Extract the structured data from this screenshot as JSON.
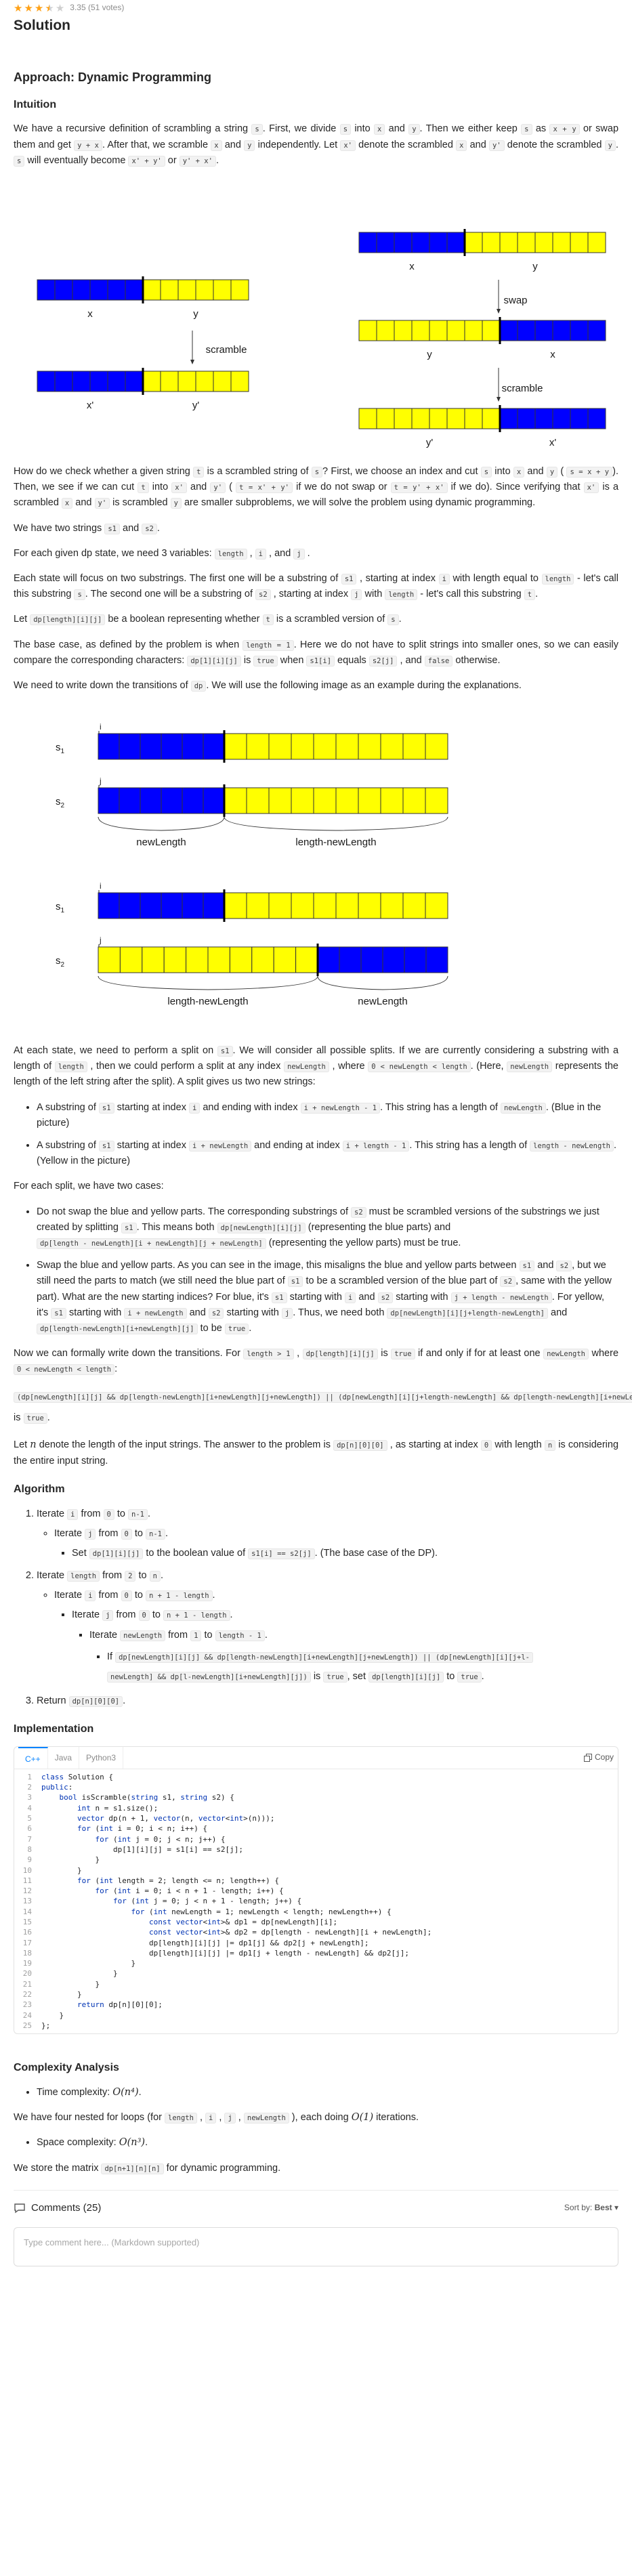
{
  "rating": {
    "stars": 3.5,
    "text": "3.35 (51 votes)"
  },
  "page_title": "Solution",
  "approach_title": "Approach: Dynamic Programming",
  "intuition_title": "Intuition",
  "intuition_paragraph": [
    {
      "t": "We have a recursive definition of scrambling a string "
    },
    {
      "c": "s"
    },
    {
      "t": ". First, we divide "
    },
    {
      "c": "s"
    },
    {
      "t": " into "
    },
    {
      "c": "x"
    },
    {
      "t": " and "
    },
    {
      "c": "y"
    },
    {
      "t": ". Then we either keep "
    },
    {
      "c": "s"
    },
    {
      "t": " as "
    },
    {
      "c": "x + y"
    },
    {
      "t": " or swap them and get "
    },
    {
      "c": "y + x"
    },
    {
      "t": ". After that, we scramble "
    },
    {
      "c": "x"
    },
    {
      "t": " and "
    },
    {
      "c": "y"
    },
    {
      "t": " independently. Let "
    },
    {
      "c": "x'"
    },
    {
      "t": " denote the scrambled "
    },
    {
      "c": "x"
    },
    {
      "t": " and "
    },
    {
      "c": "y'"
    },
    {
      "t": " denote the scrambled "
    },
    {
      "c": "y"
    },
    {
      "t": ". "
    },
    {
      "c": "s"
    },
    {
      "t": " will eventually become "
    },
    {
      "c": "x' + y'"
    },
    {
      "t": " or "
    },
    {
      "c": "y' + x'"
    },
    {
      "t": "."
    }
  ],
  "figure1": {
    "label_x": "x",
    "label_y": "y",
    "label_x_prime": "x'",
    "label_y_prime": "y'",
    "label_scramble": "scramble",
    "label_swap": "swap"
  },
  "check_paragraph": [
    {
      "t": "How do we check whether a given string "
    },
    {
      "c": "t"
    },
    {
      "t": " is a scrambled string of "
    },
    {
      "c": "s"
    },
    {
      "t": "? First, we choose an index and cut "
    },
    {
      "c": "s"
    },
    {
      "t": " into "
    },
    {
      "c": "x"
    },
    {
      "t": " and "
    },
    {
      "c": "y"
    },
    {
      "t": " ( "
    },
    {
      "c": "s = x + y"
    },
    {
      "t": "). Then, we see if we can cut "
    },
    {
      "c": "t"
    },
    {
      "t": " into "
    },
    {
      "c": "x'"
    },
    {
      "t": " and "
    },
    {
      "c": "y'"
    },
    {
      "t": " ( "
    },
    {
      "c": "t = x' + y'"
    },
    {
      "t": " if we do not swap or "
    },
    {
      "c": "t = y' + x'"
    },
    {
      "t": " if we do). Since verifying that "
    },
    {
      "c": "x'"
    },
    {
      "t": " is a scrambled "
    },
    {
      "c": "x"
    },
    {
      "t": " and "
    },
    {
      "c": "y'"
    },
    {
      "t": " is scrambled "
    },
    {
      "c": "y"
    },
    {
      "t": " are smaller subproblems, we will solve the problem using dynamic programming."
    }
  ],
  "two_strings": [
    {
      "t": "We have two strings "
    },
    {
      "c": "s1"
    },
    {
      "t": " and "
    },
    {
      "c": "s2"
    },
    {
      "t": "."
    }
  ],
  "three_vars": [
    {
      "t": "For each given dp state, we need 3 variables: "
    },
    {
      "c": "length"
    },
    {
      "t": " , "
    },
    {
      "c": "i"
    },
    {
      "t": " , and "
    },
    {
      "c": "j"
    },
    {
      "t": " ."
    }
  ],
  "substrings_paragraph": [
    {
      "t": "Each state will focus on two substrings. The first one will be a substring of "
    },
    {
      "c": "s1"
    },
    {
      "t": " , starting at index "
    },
    {
      "c": "i"
    },
    {
      "t": " with length equal to "
    },
    {
      "c": "length"
    },
    {
      "t": " - let's call this substring "
    },
    {
      "c": "s"
    },
    {
      "t": ". The second one will be a substring of "
    },
    {
      "c": "s2"
    },
    {
      "t": " , starting at index "
    },
    {
      "c": "j"
    },
    {
      "t": " with "
    },
    {
      "c": "length"
    },
    {
      "t": " - let's call this substring "
    },
    {
      "c": "t"
    },
    {
      "t": "."
    }
  ],
  "let_dp": [
    {
      "t": "Let "
    },
    {
      "c": "dp[length][i][j]"
    },
    {
      "t": " be a boolean representing whether "
    },
    {
      "c": "t"
    },
    {
      "t": " is a scrambled version of "
    },
    {
      "c": "s"
    },
    {
      "t": "."
    }
  ],
  "base_case": [
    {
      "t": "The base case, as defined by the problem is when "
    },
    {
      "c": "length = 1"
    },
    {
      "t": ". Here we do not have to split strings into smaller ones, so we can easily compare the corresponding characters: "
    },
    {
      "c": "dp[1][i][j]"
    },
    {
      "t": " is "
    },
    {
      "c": "true"
    },
    {
      "t": " when "
    },
    {
      "c": "s1[i]"
    },
    {
      "t": " equals "
    },
    {
      "c": "s2[j]"
    },
    {
      "t": " , and "
    },
    {
      "c": "false"
    },
    {
      "t": " otherwise."
    }
  ],
  "transitions_intro": [
    {
      "t": "We need to write down the transitions of "
    },
    {
      "c": "dp"
    },
    {
      "t": ". We will use the following image as an example during the explanations."
    }
  ],
  "figure2": {
    "s1": "s",
    "s1_sub": "1",
    "s2": "s",
    "s2_sub": "2",
    "i": "i",
    "j": "j",
    "newLength": "newLength",
    "length_minus_newLength": "length-newLength"
  },
  "split_paragraph": [
    {
      "t": "At each state, we need to perform a split on "
    },
    {
      "c": "s1"
    },
    {
      "t": ". We will consider all possible splits. If we are currently considering a substring with a length of "
    },
    {
      "c": "length"
    },
    {
      "t": " , then we could perform a split at any index "
    },
    {
      "c": "newLength"
    },
    {
      "t": " , where "
    },
    {
      "c": "0 < newLength < length"
    },
    {
      "t": ". (Here, "
    },
    {
      "c": "newLength"
    },
    {
      "t": " represents the length of the left string after the split). A split gives us two new strings:"
    }
  ],
  "split_items": [
    [
      {
        "t": "A substring of "
      },
      {
        "c": "s1"
      },
      {
        "t": " starting at index "
      },
      {
        "c": "i"
      },
      {
        "t": " and ending with index "
      },
      {
        "c": "i + newLength - 1"
      },
      {
        "t": ". This string has a length of "
      },
      {
        "c": "newLength"
      },
      {
        "t": ". (Blue in the picture)"
      }
    ],
    [
      {
        "t": "A substring of "
      },
      {
        "c": "s1"
      },
      {
        "t": " starting at index "
      },
      {
        "c": "i + newLength"
      },
      {
        "t": " and ending at index "
      },
      {
        "c": "i + length - 1"
      },
      {
        "t": ". This string has a length of "
      },
      {
        "c": "length - newLength"
      },
      {
        "t": ". (Yellow in the picture)"
      }
    ]
  ],
  "two_cases": [
    {
      "t": "For each split, we have two cases:"
    }
  ],
  "case_items": [
    [
      {
        "t": "Do not swap the blue and yellow parts. The corresponding substrings of "
      },
      {
        "c": "s2"
      },
      {
        "t": " must be scrambled versions of the substrings we just created by splitting "
      },
      {
        "c": "s1"
      },
      {
        "t": ". This means both "
      },
      {
        "c": "dp[newLength][i][j]"
      },
      {
        "t": " (representing the blue parts) and "
      },
      {
        "c": "dp[length - newLength][i + newLength][j + newLength]"
      },
      {
        "t": " (representing the yellow parts) must be true."
      }
    ],
    [
      {
        "t": "Swap the blue and yellow parts. As you can see in the image, this misaligns the blue and yellow parts between "
      },
      {
        "c": "s1"
      },
      {
        "t": " and "
      },
      {
        "c": "s2"
      },
      {
        "t": ", but we still need the parts to match (we still need the blue part of "
      },
      {
        "c": "s1"
      },
      {
        "t": " to be a scrambled version of the blue part of "
      },
      {
        "c": "s2"
      },
      {
        "t": ", same with the yellow part). What are the new starting indices? For blue, it's "
      },
      {
        "c": "s1"
      },
      {
        "t": " starting with "
      },
      {
        "c": "i"
      },
      {
        "t": " and "
      },
      {
        "c": "s2"
      },
      {
        "t": " starting with "
      },
      {
        "c": "j + length - newLength"
      },
      {
        "t": ". For yellow, it's "
      },
      {
        "c": "s1"
      },
      {
        "t": " starting with "
      },
      {
        "c": "i + newLength"
      },
      {
        "t": " and "
      },
      {
        "c": "s2"
      },
      {
        "t": " starting with "
      },
      {
        "c": "j"
      },
      {
        "t": ". Thus, we need both "
      },
      {
        "c": "dp[newLength][i][j+length-newLength]"
      },
      {
        "t": " and "
      },
      {
        "c": "dp[length-newLength][i+newLength][j]"
      },
      {
        "t": " to be "
      },
      {
        "c": "true"
      },
      {
        "t": "."
      }
    ]
  ],
  "formal_paragraph": [
    {
      "t": "Now we can formally write down the transitions. For "
    },
    {
      "c": "length > 1"
    },
    {
      "t": " , "
    },
    {
      "c": "dp[length][i][j]"
    },
    {
      "t": " is "
    },
    {
      "c": "true"
    },
    {
      "t": " if and only if for at least one "
    },
    {
      "c": "newLength"
    },
    {
      "t": " where "
    },
    {
      "c": "0 < newLength < length"
    },
    {
      "t": ":"
    }
  ],
  "formal_condition": [
    {
      "c": "(dp[newLength][i][j] && dp[length-newLength][i+newLength][j+newLength]) || (dp[newLength][i][j+length-newLength] && dp[length-newLength][i+newLength][j])"
    },
    {
      "t": " is "
    },
    {
      "c": "true"
    },
    {
      "t": "."
    }
  ],
  "let_n": [
    {
      "t": "Let "
    },
    {
      "m": "n"
    },
    {
      "t": " denote the length of the input strings. The answer to the problem is "
    },
    {
      "c": "dp[n][0][0]"
    },
    {
      "t": " , as starting at index "
    },
    {
      "c": "0"
    },
    {
      "t": " with length "
    },
    {
      "c": "n"
    },
    {
      "t": " is considering the entire input string."
    }
  ],
  "algorithm_title": "Algorithm",
  "algorithm": {
    "step1": [
      {
        "t": "Iterate "
      },
      {
        "c": "i"
      },
      {
        "t": " from "
      },
      {
        "c": "0"
      },
      {
        "t": " to "
      },
      {
        "c": "n-1"
      },
      {
        "t": "."
      }
    ],
    "step1a": [
      {
        "t": "Iterate "
      },
      {
        "c": "j"
      },
      {
        "t": " from "
      },
      {
        "c": "0"
      },
      {
        "t": " to "
      },
      {
        "c": "n-1"
      },
      {
        "t": "."
      }
    ],
    "step1b": [
      {
        "t": "Set "
      },
      {
        "c": "dp[1][i][j]"
      },
      {
        "t": " to the boolean value of "
      },
      {
        "c": "s1[i] == s2[j]"
      },
      {
        "t": ". (The base case of the DP)."
      }
    ],
    "step2": [
      {
        "t": "Iterate "
      },
      {
        "c": "length"
      },
      {
        "t": " from "
      },
      {
        "c": "2"
      },
      {
        "t": " to "
      },
      {
        "c": "n"
      },
      {
        "t": "."
      }
    ],
    "step2a": [
      {
        "t": "Iterate "
      },
      {
        "c": "i"
      },
      {
        "t": " from "
      },
      {
        "c": "0"
      },
      {
        "t": " to "
      },
      {
        "c": "n + 1 - length"
      },
      {
        "t": "."
      }
    ],
    "step2b": [
      {
        "t": "Iterate "
      },
      {
        "c": "j"
      },
      {
        "t": " from "
      },
      {
        "c": "0"
      },
      {
        "t": " to "
      },
      {
        "c": "n + 1 - length"
      },
      {
        "t": "."
      }
    ],
    "step2c": [
      {
        "t": "Iterate "
      },
      {
        "c": "newLength"
      },
      {
        "t": " from "
      },
      {
        "c": "1"
      },
      {
        "t": " to "
      },
      {
        "c": "length - 1"
      },
      {
        "t": "."
      }
    ],
    "step2d": [
      {
        "t": "If "
      },
      {
        "c": "dp[newLength][i][j] && dp[length-newLength][i+newLength][j+newLength]) || (dp[newLength][i][j+l-"
      },
      {
        "c": "newLength] && dp[l-newLength][i+newLength][j])"
      },
      {
        "t": " is "
      },
      {
        "c": "true"
      },
      {
        "t": ", set "
      },
      {
        "c": "dp[length][i][j]"
      },
      {
        "t": " to "
      },
      {
        "c": "true"
      },
      {
        "t": "."
      }
    ],
    "step3": [
      {
        "t": "Return "
      },
      {
        "c": "dp[n][0][0]"
      },
      {
        "t": "."
      }
    ]
  },
  "implementation_title": "Implementation",
  "code_tabs": [
    "C++",
    "Java",
    "Python3"
  ],
  "copy_label": "Copy",
  "code_lines": [
    "class Solution {",
    "public:",
    "    bool isScramble(string s1, string s2) {",
    "        int n = s1.size();",
    "        vector dp(n + 1, vector(n, vector<int>(n)));",
    "        for (int i = 0; i < n; i++) {",
    "            for (int j = 0; j < n; j++) {",
    "                dp[1][i][j] = s1[i] == s2[j];",
    "            }",
    "        }",
    "        for (int length = 2; length <= n; length++) {",
    "            for (int i = 0; i < n + 1 - length; i++) {",
    "                for (int j = 0; j < n + 1 - length; j++) {",
    "                    for (int newLength = 1; newLength < length; newLength++) {",
    "                        const vector<int>& dp1 = dp[newLength][i];",
    "                        const vector<int>& dp2 = dp[length - newLength][i + newLength];",
    "                        dp[length][i][j] |= dp1[j] && dp2[j + newLength];",
    "                        dp[length][i][j] |= dp1[j + length - newLength] && dp2[j];",
    "                    }",
    "                }",
    "            }",
    "        }",
    "        return dp[n][0][0];",
    "    }",
    "};"
  ],
  "complexity_title": "Complexity Analysis",
  "time_item": [
    {
      "t": "Time complexity: "
    },
    {
      "m": "O(n⁴)"
    },
    {
      "t": "."
    }
  ],
  "time_paragraph": [
    {
      "t": "We have four nested for loops (for "
    },
    {
      "c": "length"
    },
    {
      "t": " , "
    },
    {
      "c": "i"
    },
    {
      "t": " , "
    },
    {
      "c": "j"
    },
    {
      "t": " , "
    },
    {
      "c": "newLength"
    },
    {
      "t": " ), each doing "
    },
    {
      "m": "O(1)"
    },
    {
      "t": " iterations."
    }
  ],
  "space_item": [
    {
      "t": "Space complexity: "
    },
    {
      "m": "O(n³)"
    },
    {
      "t": "."
    }
  ],
  "space_paragraph": [
    {
      "t": "We store the matrix "
    },
    {
      "c": "dp[n+1][n][n]"
    },
    {
      "t": " for dynamic programming."
    }
  ],
  "comments": {
    "title": "Comments (25)",
    "sort_label": "Sort by:",
    "sort_value": "Best",
    "placeholder": "Type comment here... (Markdown supported)"
  },
  "colors": {
    "blue": "#0000ff",
    "yellow": "#ffff00",
    "accent": "#0a84ff",
    "star": "#ffa116"
  }
}
